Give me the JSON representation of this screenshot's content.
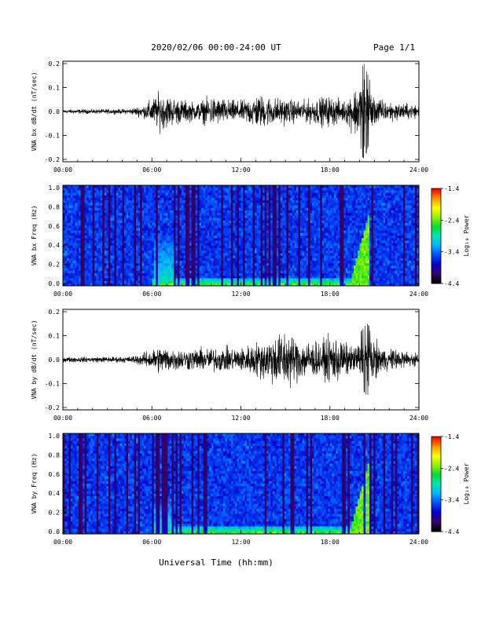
{
  "header": {
    "title": "2020/02/06  00:00-24:00 UT",
    "page": "Page 1/1"
  },
  "colors": {
    "spectrogram_scale": [
      "#000000",
      "#3a006e",
      "#0000c8",
      "#0050ff",
      "#00b4ff",
      "#00e6b4",
      "#00dc32",
      "#96f000",
      "#ffff00",
      "#ff9600",
      "#ff0000"
    ],
    "trace": "#000000"
  },
  "chart_data": [
    {
      "type": "line",
      "ylabel": "VNA bx dB/dt (nT/sec)",
      "xticks": [
        "00:00",
        "06:00",
        "12:00",
        "18:00",
        "24:00"
      ],
      "xlim": [
        0,
        24
      ],
      "ylim": [
        -0.21,
        0.21
      ],
      "yticks": [
        "0.2",
        "0.1",
        "0.0",
        "-0.1",
        "-0.2"
      ],
      "envelope": [
        {
          "t": 0,
          "amp": 0.012
        },
        {
          "t": 4.5,
          "amp": 0.015
        },
        {
          "t": 5.5,
          "amp": 0.04
        },
        {
          "t": 6.5,
          "amp": 0.11
        },
        {
          "t": 7.5,
          "amp": 0.08
        },
        {
          "t": 9,
          "amp": 0.05
        },
        {
          "t": 10,
          "amp": 0.09
        },
        {
          "t": 11,
          "amp": 0.07
        },
        {
          "t": 12,
          "amp": 0.06
        },
        {
          "t": 13,
          "amp": 0.1
        },
        {
          "t": 14.5,
          "amp": 0.08
        },
        {
          "t": 16,
          "amp": 0.06
        },
        {
          "t": 18,
          "amp": 0.09
        },
        {
          "t": 19,
          "amp": 0.06
        },
        {
          "t": 20.3,
          "amp": 0.21
        },
        {
          "t": 21,
          "amp": 0.08
        },
        {
          "t": 22.5,
          "amp": 0.05
        },
        {
          "t": 24,
          "amp": 0.04
        }
      ]
    },
    {
      "type": "heatmap",
      "ylabel": "VNA bx Freq (Hz)",
      "colorbar_label": "Log₁₀ Power",
      "colorbar_ticks": [
        "-1.4",
        "-2.4",
        "-3.4",
        "-4.4"
      ],
      "zlim": [
        -4.4,
        -1.4
      ],
      "xticks": [
        "00:00",
        "06:00",
        "12:00",
        "18:00",
        "24:00"
      ],
      "xlim": [
        0,
        24
      ],
      "ylim": [
        0,
        1.0
      ],
      "yticks": [
        "1.0",
        "0.8",
        "0.6",
        "0.4",
        "0.2",
        "0.0"
      ],
      "features": [
        {
          "type": "low_band",
          "t_start": 6.0,
          "t_end": 20.5,
          "max_freq": 0.08,
          "level": -2.3
        },
        {
          "type": "rising_tone",
          "t_peak": 20.6,
          "max_freq": 0.7,
          "level": -2.2
        },
        {
          "type": "burst",
          "t_center": 6.8,
          "max_freq": 0.45,
          "level": -2.9
        }
      ]
    },
    {
      "type": "line",
      "ylabel": "VNA by dB/dt (nT/sec)",
      "xticks": [
        "00:00",
        "06:00",
        "12:00",
        "18:00",
        "24:00"
      ],
      "xlim": [
        0,
        24
      ],
      "ylim": [
        -0.21,
        0.21
      ],
      "yticks": [
        "0.2",
        "0.1",
        "0.0",
        "-0.1",
        "-0.2"
      ],
      "envelope": [
        {
          "t": 0,
          "amp": 0.015
        },
        {
          "t": 4.5,
          "amp": 0.018
        },
        {
          "t": 5.5,
          "amp": 0.04
        },
        {
          "t": 6.5,
          "amp": 0.08
        },
        {
          "t": 8,
          "amp": 0.06
        },
        {
          "t": 10,
          "amp": 0.07
        },
        {
          "t": 12,
          "amp": 0.07
        },
        {
          "t": 13,
          "amp": 0.1
        },
        {
          "t": 15,
          "amp": 0.17
        },
        {
          "t": 16,
          "amp": 0.12
        },
        {
          "t": 17.5,
          "amp": 0.1
        },
        {
          "t": 18.3,
          "amp": 0.15
        },
        {
          "t": 19.5,
          "amp": 0.07
        },
        {
          "t": 20.5,
          "amp": 0.16
        },
        {
          "t": 21.5,
          "amp": 0.07
        },
        {
          "t": 24,
          "amp": 0.04
        }
      ]
    },
    {
      "type": "heatmap",
      "ylabel": "VNA by Freq (Hz)",
      "colorbar_label": "Log₁₀ Power",
      "colorbar_ticks": [
        "-1.4",
        "-2.4",
        "-3.4",
        "-4.4"
      ],
      "zlim": [
        -4.4,
        -1.4
      ],
      "xticks": [
        "00:00",
        "06:00",
        "12:00",
        "18:00",
        "24:00"
      ],
      "xlim": [
        0,
        24
      ],
      "ylim": [
        0,
        1.0
      ],
      "yticks": [
        "1.0",
        "0.8",
        "0.6",
        "0.4",
        "0.2",
        "0.0"
      ],
      "features": [
        {
          "type": "low_band",
          "t_start": 6.0,
          "t_end": 20.5,
          "max_freq": 0.08,
          "level": -2.3
        },
        {
          "type": "rising_tone",
          "t_peak": 20.6,
          "max_freq": 0.7,
          "level": -2.2
        },
        {
          "type": "burst",
          "t_center": 6.8,
          "max_freq": 0.3,
          "level": -2.8
        }
      ]
    }
  ],
  "footer": {
    "xlabel": "Universal Time (hh:mm)"
  }
}
